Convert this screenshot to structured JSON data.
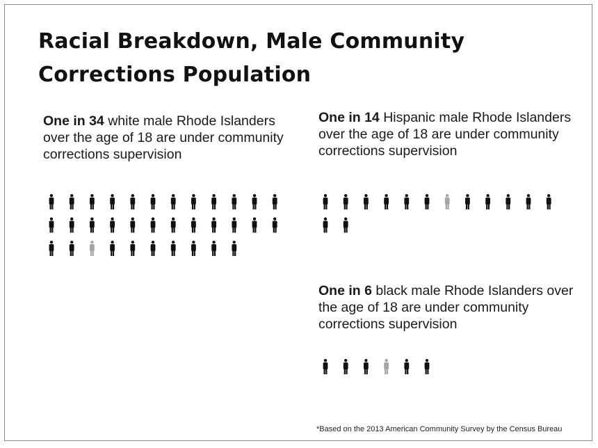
{
  "title": {
    "line1": "Racial Breakdown, Male Community",
    "line2": "Corrections Population"
  },
  "stats": [
    {
      "lead": "One in 34",
      "rest": " white male Rhode Islanders over the age of 18 are under community corrections supervision"
    },
    {
      "lead": "One in 14",
      "rest": " Hispanic male Rhode Islanders over the age of 18 are under community corrections supervision"
    },
    {
      "lead": "One in 6",
      "rest": " black male Rhode Islanders over the age of 18 are under community corrections supervision"
    }
  ],
  "footnote": "*Based on the 2013 American Community Survey by the Census Bureau",
  "colors": {
    "figure": "#111111",
    "highlight": "#a6a6a6"
  },
  "chart_data": {
    "type": "pictograph",
    "groups": [
      {
        "group": "white",
        "one_in": 34,
        "total_figures": 34,
        "highlighted_index": 26,
        "figures_per_row": 12
      },
      {
        "group": "Hispanic",
        "one_in": 14,
        "total_figures": 14,
        "highlighted_index": 6,
        "figures_per_row": 12
      },
      {
        "group": "black",
        "one_in": 6,
        "total_figures": 6,
        "highlighted_index": 3,
        "figures_per_row": 6
      }
    ]
  }
}
